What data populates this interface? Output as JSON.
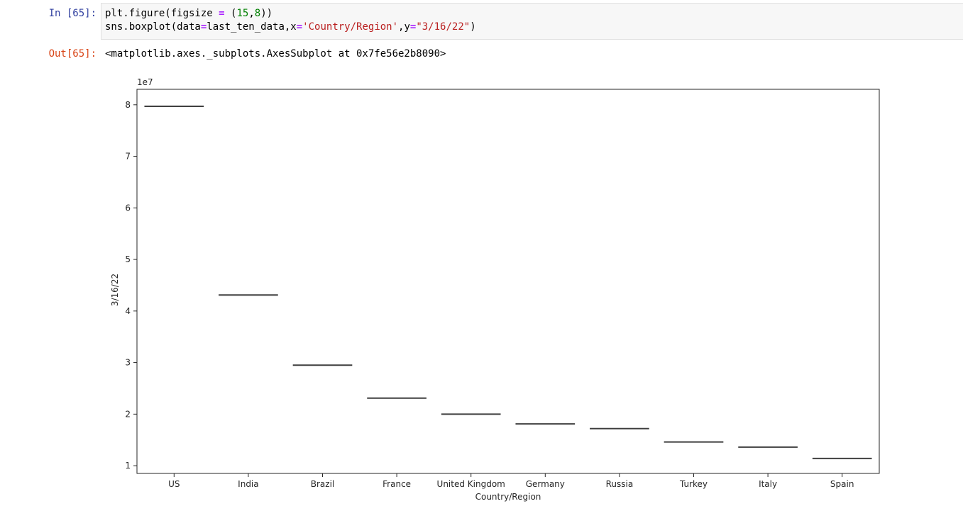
{
  "cell": {
    "in_prompt": "In [65]:",
    "out_prompt": "Out[65]:",
    "code": {
      "line1": {
        "a": "plt.figure(figsize ",
        "op": "=",
        "b": " (",
        "n1": "15",
        "c": ",",
        "n2": "8",
        "d": "))"
      },
      "line2": {
        "a": "sns.boxplot(data",
        "op1": "=",
        "b": "last_ten_data,x",
        "op2": "=",
        "s1": "'Country/Region'",
        "c": ",y",
        "op3": "=",
        "s2": "\"3/16/22\"",
        "d": ")"
      }
    },
    "output_text": "<matplotlib.axes._subplots.AxesSubplot at 0x7fe56e2b8090>"
  },
  "chart_data": {
    "type": "box",
    "title": "",
    "xlabel": "Country/Region",
    "ylabel": "3/16/22",
    "offset_label": "1e7",
    "ylim": [
      0.85,
      8.3
    ],
    "yticks": [
      1,
      2,
      3,
      4,
      5,
      6,
      7,
      8
    ],
    "categories": [
      "US",
      "India",
      "Brazil",
      "France",
      "United Kingdom",
      "Germany",
      "Russia",
      "Turkey",
      "Italy",
      "Spain"
    ],
    "values": [
      7.97,
      4.31,
      2.95,
      2.31,
      2.0,
      1.81,
      1.72,
      1.46,
      1.36,
      1.14
    ],
    "grid": false,
    "legend": "none",
    "line_color": "#3f3f3f"
  }
}
